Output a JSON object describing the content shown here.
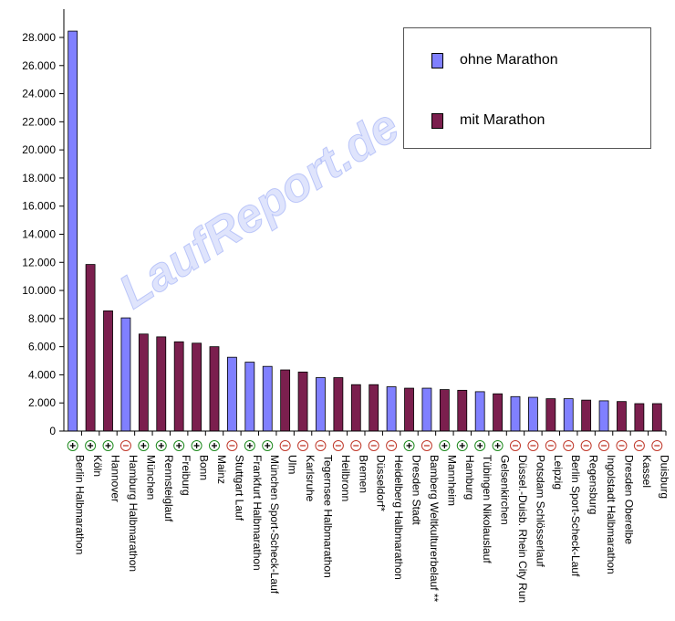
{
  "chart_data": {
    "type": "bar",
    "title": "",
    "xlabel": "",
    "ylabel": "",
    "ylim": [
      0,
      30000
    ],
    "yticks": [
      0,
      2000,
      4000,
      6000,
      8000,
      10000,
      12000,
      14000,
      16000,
      18000,
      20000,
      22000,
      24000,
      26000,
      28000
    ],
    "ytick_labels": [
      "0",
      "2.000",
      "4.000",
      "6.000",
      "8.000",
      "10.000",
      "12.000",
      "14.000",
      "16.000",
      "18.000",
      "20.000",
      "22.000",
      "24.000",
      "26.000",
      "28.000"
    ],
    "grid": false,
    "legend_position": "top-right",
    "series": [
      {
        "name": "ohne Marathon",
        "color": "#8080ff"
      },
      {
        "name": "mit Marathon",
        "color": "#7b1f4e"
      }
    ],
    "categories": [
      "Berlin Halbmarathon",
      "Köln",
      "Hannover",
      "Hamburg Halbmarathon",
      "München",
      "Rennsteiglauf",
      "Freiburg",
      "Bonn",
      "Mainz",
      "Stuttgart Lauf",
      "Frankfurt Halbmarathon",
      "München Sport-Scheck-Lauf",
      "Ulm",
      "Karlsruhe",
      "Tegernsee Halbmarathon",
      "Heilbronn",
      "Bremen",
      "Düsseldorf*",
      "Heidelberg Halbmarathon",
      "Dresden Stadt",
      "Bamberg Weltkulturerbelauf **",
      "Mannheim",
      "Hamburg",
      "Tübingen Nikolauslauf",
      "Gelsenkirchen",
      "Düssel.-Duisb. Rhein City Run",
      "Potsdam Schlösserlauf",
      "Leipzig",
      "Berlin Sport-Scheck-Lauf",
      "Regensburg",
      "Ingolstadt Halbmarathon",
      "Dresden Oberelbe",
      "Kassel",
      "Duisburg"
    ],
    "values": [
      28450,
      11850,
      8550,
      8050,
      6900,
      6700,
      6350,
      6250,
      6000,
      5250,
      4900,
      4600,
      4350,
      4200,
      3800,
      3800,
      3300,
      3300,
      3150,
      3050,
      3050,
      2950,
      2900,
      2800,
      2650,
      2450,
      2400,
      2300,
      2300,
      2200,
      2150,
      2100,
      1950,
      1950
    ],
    "series_index": [
      0,
      1,
      1,
      0,
      1,
      1,
      1,
      1,
      1,
      0,
      0,
      0,
      1,
      1,
      0,
      1,
      1,
      1,
      0,
      1,
      0,
      1,
      1,
      0,
      1,
      0,
      0,
      1,
      0,
      1,
      0,
      1,
      1,
      1
    ],
    "trend": [
      "+",
      "+",
      "+",
      "-",
      "+",
      "+",
      "+",
      "+",
      "+",
      "-",
      "+",
      "+",
      "-",
      "-",
      "-",
      "-",
      "-",
      "-",
      "-",
      "+",
      "-",
      "+",
      "+",
      "+",
      "+",
      "-",
      "-",
      "-",
      "-",
      "-",
      "-",
      "-",
      "-",
      "-"
    ],
    "trend_colors": {
      "+": "#1f8a1f",
      "-": "#c0392b"
    }
  },
  "legend": {
    "ohne": "ohne Marathon",
    "mit": "mit Marathon",
    "ohne_color": "#8080ff",
    "mit_color": "#7b1f4e"
  },
  "watermark": "LaufReport.de"
}
